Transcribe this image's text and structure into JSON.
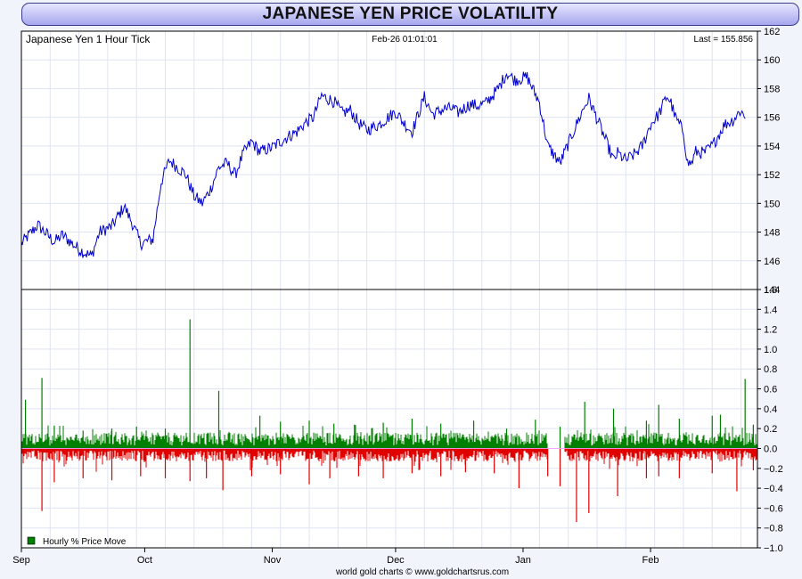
{
  "header": {
    "title": "JAPANESE YEN PRICE VOLATILITY"
  },
  "price_panel": {
    "series_label": "Japanese Yen 1 Hour Tick",
    "timestamp": "Feb-26  01:01:01",
    "last_label": "Last = 155.856"
  },
  "volatility_panel": {
    "legend_label": "Hourly % Price Move"
  },
  "footer": {
    "credit": "world gold charts © www.goldchartsrus.com"
  },
  "colors": {
    "price_line": "#0000cc",
    "positive_bars": "#007f00",
    "negative_bars": "#e00000",
    "legend_swatch": "#008000"
  },
  "chart_data": [
    {
      "type": "line",
      "y_axis_side": "right",
      "ylim": [
        144,
        162
      ],
      "yticks": [
        144,
        146,
        148,
        150,
        152,
        154,
        156,
        158,
        160,
        162
      ],
      "xlim": [
        0,
        179
      ],
      "xtick_positions": [
        0,
        30,
        61,
        91,
        122,
        153
      ],
      "xtick_labels": [
        "Sep",
        "Oct",
        "Nov",
        "Dec",
        "Jan",
        "Feb"
      ],
      "grid": true,
      "series": [
        {
          "x": [
            0,
            4,
            5,
            8,
            10,
            14,
            17,
            19,
            22,
            25,
            27,
            29,
            32,
            34,
            36,
            40,
            42,
            44,
            46,
            48,
            50,
            52,
            54,
            56,
            58,
            61,
            64,
            67,
            69,
            71,
            73,
            76,
            78,
            80,
            82,
            84,
            87,
            91,
            93,
            95,
            98,
            100,
            103,
            105,
            106,
            109,
            111,
            113,
            116,
            118,
            120,
            123,
            126,
            128,
            131,
            135,
            137,
            138,
            141,
            144,
            145,
            147,
            149,
            151,
            153,
            155,
            157,
            158,
            159,
            161,
            162,
            163,
            164,
            166,
            168,
            170,
            171,
            173,
            175,
            176
          ],
          "y": [
            147.2,
            148.5,
            148.2,
            147.3,
            147.8,
            146.8,
            146.3,
            148.0,
            148.4,
            149.8,
            148.6,
            147.2,
            147.5,
            151.5,
            153.0,
            152.0,
            150.5,
            150.0,
            151.0,
            152.5,
            152.8,
            152.0,
            153.5,
            154.3,
            153.6,
            153.9,
            154.5,
            155.0,
            155.6,
            156.0,
            157.5,
            157.1,
            156.3,
            156.5,
            155.6,
            155.1,
            155.5,
            156.4,
            155.6,
            155.0,
            157.4,
            156.2,
            156.6,
            156.6,
            156.3,
            156.9,
            156.8,
            157.0,
            158.0,
            159.1,
            158.6,
            158.8,
            157.0,
            154.0,
            152.8,
            155.5,
            156.8,
            157.3,
            155.2,
            153.0,
            153.5,
            153.0,
            153.4,
            154.0,
            155.5,
            156.2,
            157.5,
            157.0,
            156.0,
            155.0,
            152.8,
            152.8,
            153.6,
            153.5,
            154.0,
            155.0,
            155.5,
            155.8,
            156.5,
            155.9
          ]
        }
      ]
    },
    {
      "type": "bar",
      "y_axis_side": "right",
      "ylim": [
        -1.0,
        1.6
      ],
      "yticks": [
        -1.0,
        -0.8,
        -0.6,
        -0.4,
        -0.2,
        0.0,
        0.2,
        0.4,
        0.6,
        0.8,
        1.0,
        1.2,
        1.4,
        1.6
      ],
      "xlim": [
        0,
        179
      ],
      "grid": true,
      "series": [
        {
          "name": "Hourly % Price Move",
          "sign": "positive",
          "x": [
            1,
            5,
            8,
            15,
            22,
            28,
            35,
            41,
            48,
            58,
            63,
            70,
            76,
            81,
            88,
            95,
            102,
            110,
            118,
            125,
            131,
            137,
            144,
            152,
            155,
            160,
            168,
            170,
            176,
            178
          ],
          "values": [
            0.49,
            0.71,
            0.23,
            0.18,
            0.2,
            0.22,
            0.2,
            1.3,
            0.58,
            0.33,
            0.27,
            0.28,
            0.25,
            0.24,
            0.26,
            0.3,
            0.25,
            0.28,
            0.2,
            0.29,
            0.22,
            0.47,
            0.4,
            0.28,
            0.44,
            0.3,
            0.33,
            0.34,
            0.7,
            0.24
          ]
        },
        {
          "name": "",
          "sign": "negative",
          "x": [
            5,
            8,
            15,
            22,
            29,
            35,
            41,
            45,
            49,
            56,
            63,
            70,
            75,
            82,
            88,
            95,
            102,
            108,
            115,
            121,
            128,
            131,
            135,
            138,
            145,
            152,
            155,
            160,
            168,
            174,
            178
          ],
          "values": [
            -0.63,
            -0.34,
            -0.3,
            -0.32,
            -0.28,
            -0.3,
            -0.33,
            -0.3,
            -0.42,
            -0.28,
            -0.26,
            -0.36,
            -0.3,
            -0.28,
            -0.3,
            -0.25,
            -0.28,
            -0.24,
            -0.25,
            -0.4,
            -0.28,
            -0.38,
            -0.74,
            -0.65,
            -0.48,
            -0.3,
            -0.28,
            -0.3,
            -0.25,
            -0.43,
            -0.22
          ]
        }
      ]
    }
  ]
}
